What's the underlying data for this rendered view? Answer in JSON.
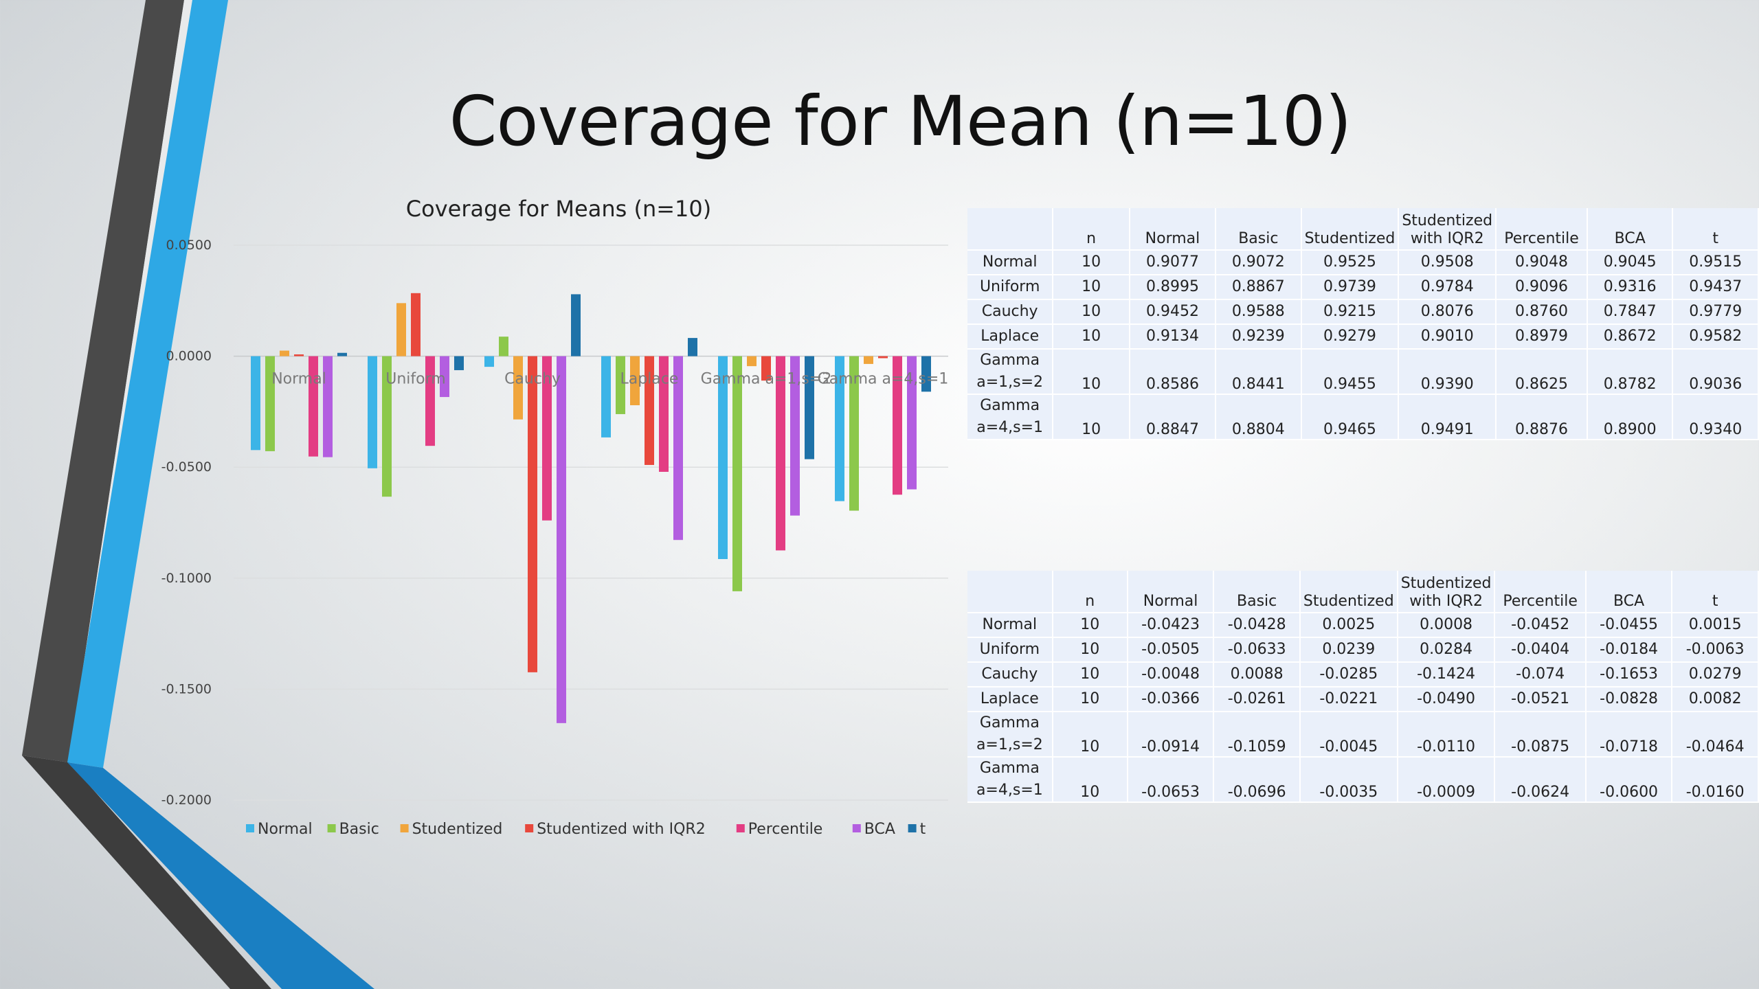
{
  "slide": {
    "title": "Coverage for Mean (n=10)"
  },
  "chart_data": {
    "type": "bar",
    "title": "Coverage for Means (n=10)",
    "xlabel": "",
    "ylabel": "",
    "ylim": [
      -0.2,
      0.05
    ],
    "yticks": [
      "0.0500",
      "0.0000",
      "-0.0500",
      "-0.1000",
      "-0.1500",
      "-0.2000"
    ],
    "grid": true,
    "legend_position": "bottom",
    "categories": [
      "Normal",
      "Uniform",
      "Cauchy",
      "Laplace",
      "Gamma a=1,s=2",
      "Gamma a=4,s=1"
    ],
    "series": [
      {
        "name": "Normal",
        "color": "#3cb4e7",
        "values": [
          -0.0423,
          -0.0505,
          -0.0048,
          -0.0366,
          -0.0914,
          -0.0653
        ]
      },
      {
        "name": "Basic",
        "color": "#8cc84b",
        "values": [
          -0.0428,
          -0.0633,
          0.0088,
          -0.0261,
          -0.1059,
          -0.0696
        ]
      },
      {
        "name": "Studentized",
        "color": "#f0a53c",
        "values": [
          0.0025,
          0.0239,
          -0.0285,
          -0.0221,
          -0.0045,
          -0.0035
        ]
      },
      {
        "name": "Studentized with IQR2",
        "color": "#e8483c",
        "values": [
          0.0008,
          0.0284,
          -0.1424,
          -0.049,
          -0.011,
          -0.0009
        ]
      },
      {
        "name": "Percentile",
        "color": "#e33d83",
        "values": [
          -0.0452,
          -0.0404,
          -0.074,
          -0.0521,
          -0.0875,
          -0.0624
        ]
      },
      {
        "name": "BCA",
        "color": "#b35ee0",
        "values": [
          -0.0455,
          -0.0184,
          -0.1653,
          -0.0828,
          -0.0718,
          -0.06
        ]
      },
      {
        "name": "t",
        "color": "#1e72a8",
        "values": [
          0.0015,
          -0.0063,
          0.0279,
          0.0082,
          -0.0464,
          -0.016
        ]
      }
    ]
  },
  "table1": {
    "headers": [
      "",
      "n",
      "Normal",
      "Basic",
      "Studentized",
      "Studentized with IQR2",
      "Percentile",
      "BCA",
      "t"
    ],
    "rows": [
      [
        "Normal",
        "10",
        "0.9077",
        "0.9072",
        "0.9525",
        "0.9508",
        "0.9048",
        "0.9045",
        "0.9515"
      ],
      [
        "Uniform",
        "10",
        "0.8995",
        "0.8867",
        "0.9739",
        "0.9784",
        "0.9096",
        "0.9316",
        "0.9437"
      ],
      [
        "Cauchy",
        "10",
        "0.9452",
        "0.9588",
        "0.9215",
        "0.8076",
        "0.8760",
        "0.7847",
        "0.9779"
      ],
      [
        "Laplace",
        "10",
        "0.9134",
        "0.9239",
        "0.9279",
        "0.9010",
        "0.8979",
        "0.8672",
        "0.9582"
      ],
      [
        "Gamma a=1,s=2",
        "10",
        "0.8586",
        "0.8441",
        "0.9455",
        "0.9390",
        "0.8625",
        "0.8782",
        "0.9036"
      ],
      [
        "Gamma a=4,s=1",
        "10",
        "0.8847",
        "0.8804",
        "0.9465",
        "0.9491",
        "0.8876",
        "0.8900",
        "0.9340"
      ]
    ]
  },
  "table2": {
    "headers": [
      "",
      "n",
      "Normal",
      "Basic",
      "Studentized",
      "Studentized with IQR2",
      "Percentile",
      "BCA",
      "t"
    ],
    "rows": [
      [
        "Normal",
        "10",
        "-0.0423",
        "-0.0428",
        "0.0025",
        "0.0008",
        "-0.0452",
        "-0.0455",
        "0.0015"
      ],
      [
        "Uniform",
        "10",
        "-0.0505",
        "-0.0633",
        "0.0239",
        "0.0284",
        "-0.0404",
        "-0.0184",
        "-0.0063"
      ],
      [
        "Cauchy",
        "10",
        "-0.0048",
        "0.0088",
        "-0.0285",
        "-0.1424",
        "-0.074",
        "-0.1653",
        "0.0279"
      ],
      [
        "Laplace",
        "10",
        "-0.0366",
        "-0.0261",
        "-0.0221",
        "-0.0490",
        "-0.0521",
        "-0.0828",
        "0.0082"
      ],
      [
        "Gamma a=1,s=2",
        "10",
        "-0.0914",
        "-0.1059",
        "-0.0045",
        "-0.0110",
        "-0.0875",
        "-0.0718",
        "-0.0464"
      ],
      [
        "Gamma a=4,s=1",
        "10",
        "-0.0653",
        "-0.0696",
        "-0.0035",
        "-0.0009",
        "-0.0624",
        "-0.0600",
        "-0.0160"
      ]
    ]
  }
}
